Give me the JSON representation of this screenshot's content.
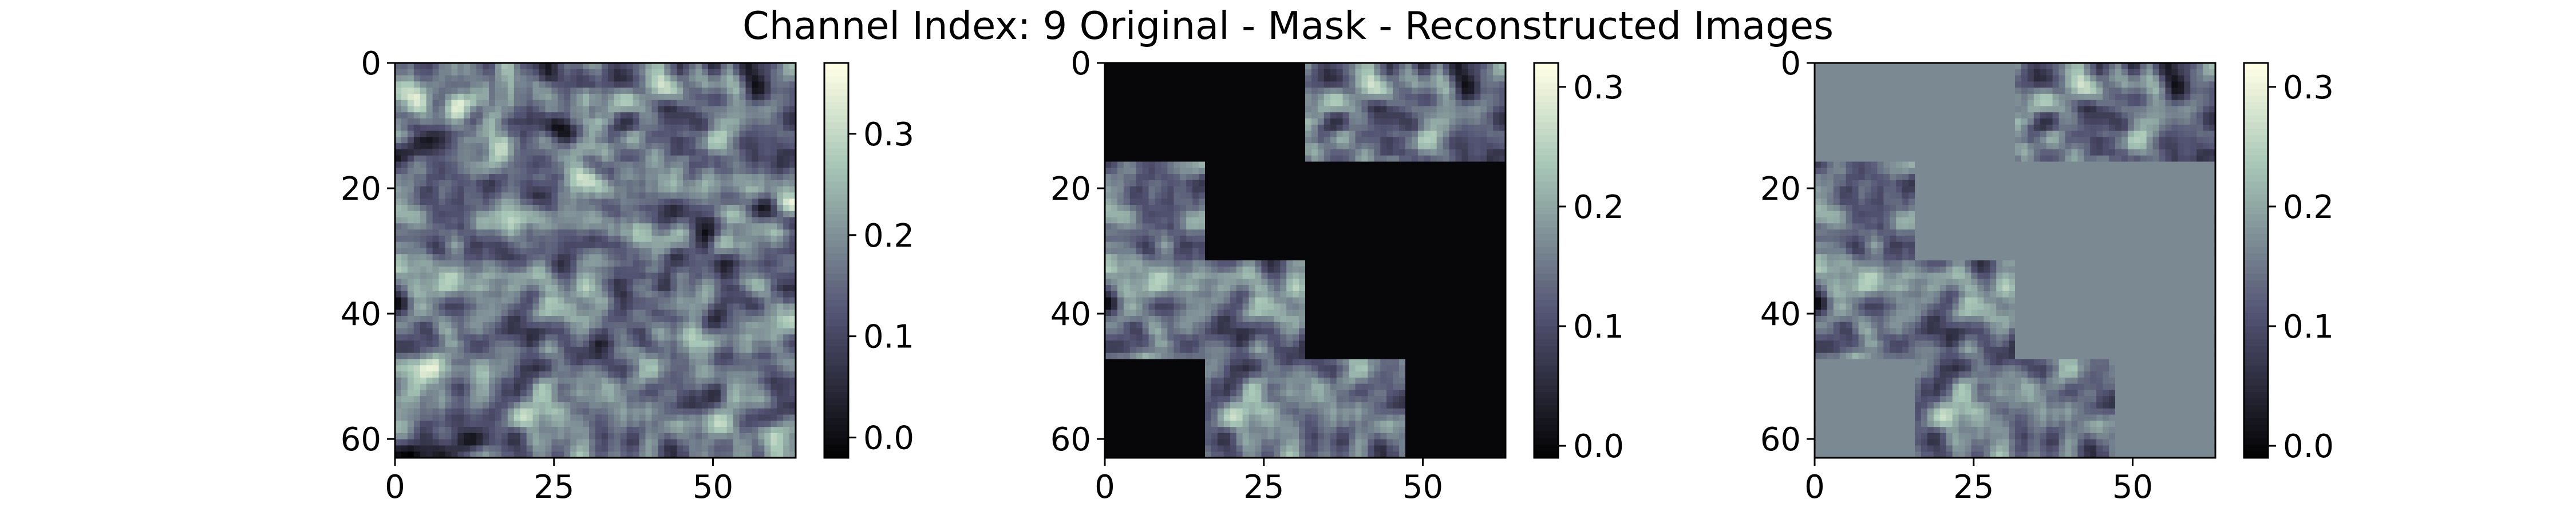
{
  "chart_data": {
    "type": "heatmap",
    "title": "Channel Index: 9 Original - Mask - Reconstructed Images",
    "colormap": "bone",
    "panels": [
      {
        "name": "original",
        "xlim": [
          0,
          63
        ],
        "ylim": [
          63,
          0
        ],
        "xticks": [
          "0",
          "25",
          "50"
        ],
        "yticks": [
          "0",
          "20",
          "40",
          "60"
        ],
        "colorbar": {
          "range": [
            -0.02,
            0.37
          ],
          "ticks": [
            "0.0",
            "0.1",
            "0.2",
            "0.3"
          ]
        },
        "value_range": [
          -0.02,
          0.37
        ],
        "visible_blocks": "all",
        "fill_value": null
      },
      {
        "name": "mask",
        "xlim": [
          0,
          63
        ],
        "ylim": [
          63,
          0
        ],
        "xticks": [
          "0",
          "25",
          "50"
        ],
        "yticks": [
          "0",
          "20",
          "40",
          "60"
        ],
        "colorbar": {
          "range": [
            -0.01,
            0.32
          ],
          "ticks": [
            "0.0",
            "0.1",
            "0.2",
            "0.3"
          ]
        },
        "value_range": [
          -0.01,
          0.32
        ],
        "visible_blocks": [
          [
            0,
            2
          ],
          [
            0,
            3
          ],
          [
            1,
            0
          ],
          [
            2,
            0
          ],
          [
            2,
            1
          ],
          [
            3,
            1
          ],
          [
            3,
            2
          ]
        ],
        "fill_value": 0.0
      },
      {
        "name": "reconstructed",
        "xlim": [
          0,
          63
        ],
        "ylim": [
          63,
          0
        ],
        "xticks": [
          "0",
          "25",
          "50"
        ],
        "yticks": [
          "0",
          "20",
          "40",
          "60"
        ],
        "colorbar": {
          "range": [
            -0.01,
            0.32
          ],
          "ticks": [
            "0.0",
            "0.1",
            "0.2",
            "0.3"
          ]
        },
        "value_range": [
          -0.01,
          0.32
        ],
        "visible_blocks": [
          [
            0,
            2
          ],
          [
            0,
            3
          ],
          [
            1,
            0
          ],
          [
            2,
            0
          ],
          [
            2,
            1
          ],
          [
            3,
            1
          ],
          [
            3,
            2
          ]
        ],
        "fill_value": 0.17
      }
    ],
    "grid": false
  }
}
